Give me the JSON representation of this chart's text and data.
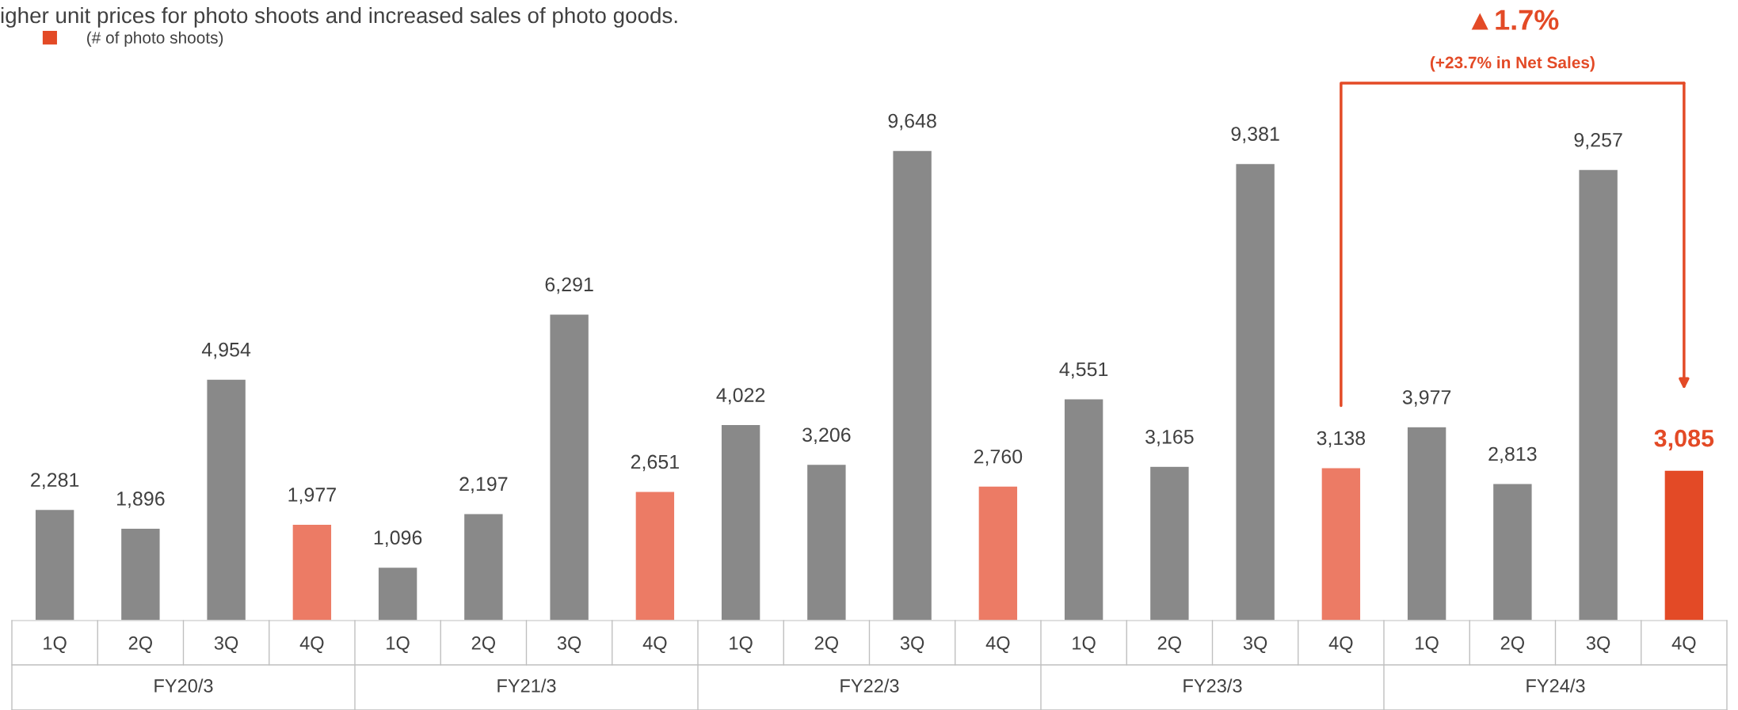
{
  "chart_data": {
    "type": "bar",
    "title": "igher unit prices for photo shoots and increased sales of photo goods.",
    "categories": [
      "1Q",
      "2Q",
      "3Q",
      "4Q",
      "1Q",
      "2Q",
      "3Q",
      "4Q",
      "1Q",
      "2Q",
      "3Q",
      "4Q",
      "1Q",
      "2Q",
      "3Q",
      "4Q",
      "1Q",
      "2Q",
      "3Q",
      "4Q"
    ],
    "series": [
      {
        "name": "(# of photo shoots)",
        "color": "#e34a26",
        "values": [
          2281,
          1896,
          4954,
          1977,
          1096,
          2197,
          6291,
          2651,
          4022,
          3206,
          9648,
          2760,
          4551,
          3165,
          9381,
          3138,
          3977,
          2813,
          9257,
          3085
        ],
        "colors": [
          "#898989",
          "#898989",
          "#898989",
          "#ec7b65",
          "#898989",
          "#898989",
          "#898989",
          "#ec7b65",
          "#898989",
          "#898989",
          "#898989",
          "#ec7b65",
          "#898989",
          "#898989",
          "#898989",
          "#ec7b65",
          "#898989",
          "#898989",
          "#898989",
          "#e34a26"
        ],
        "value_labels": [
          "2,281",
          "1,896",
          "4,954",
          "1,977",
          "1,096",
          "2,197",
          "6,291",
          "2,651",
          "4,022",
          "3,206",
          "9,648",
          "2,760",
          "4,551",
          "3,165",
          "9,381",
          "3,138",
          "3,977",
          "2,813",
          "9,257",
          "3,085"
        ]
      }
    ],
    "annotations": [
      "▲1.7%",
      "(+23.7% in Net Sales)",
      "FY20/3",
      "FY21/3",
      "FY22/3",
      "FY23/3",
      "FY24/3"
    ],
    "legend": "top left",
    "grid": false
  }
}
